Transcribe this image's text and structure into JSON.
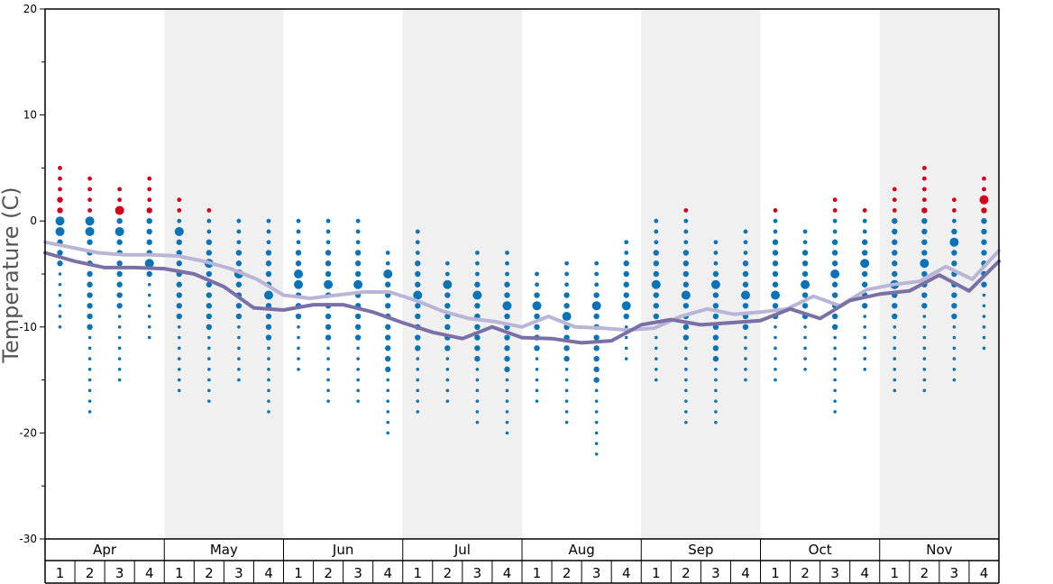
{
  "chart_data": {
    "type": "scatter",
    "title": "",
    "ylabel": "Temperature (C)",
    "ylim": [
      -30,
      20
    ],
    "yticks": [
      "20",
      "10",
      "0",
      "-10",
      "-20",
      "-30"
    ],
    "months": [
      "Apr",
      "May",
      "Jun",
      "Jul",
      "Aug",
      "Sep",
      "Oct",
      "Nov"
    ],
    "weeks": [
      "1",
      "2",
      "3",
      "4"
    ],
    "grid": "alternating shaded month bands",
    "colors": {
      "warm_dot": "#d0021b",
      "cold_dot": "#0a73b8",
      "upper_line": "#b9b5d6",
      "lower_line": "#7a70a6",
      "band": "#f0f0f0"
    },
    "upper_line": [
      -2.0,
      -2.5,
      -3.0,
      -3.2,
      -3.2,
      -3.3,
      -3.8,
      -4.5,
      -5.5,
      -7.0,
      -7.3,
      -7.0,
      -6.7,
      -6.7,
      -7.5,
      -8.5,
      -9.2,
      -9.5,
      -10.0,
      -9.0,
      -10.0,
      -10.1,
      -10.3,
      -10.1,
      -9.0,
      -8.3,
      -8.8,
      -8.6,
      -8.3,
      -7.1,
      -8.0,
      -6.5,
      -6.0,
      -5.7,
      -4.3,
      -5.5,
      -2.8
    ],
    "lower_line": [
      -3.0,
      -3.8,
      -4.4,
      -4.4,
      -4.5,
      -5.0,
      -6.2,
      -8.2,
      -8.4,
      -7.9,
      -7.9,
      -8.6,
      -9.6,
      -10.5,
      -11.1,
      -10.0,
      -11.0,
      -11.1,
      -11.5,
      -11.3,
      -9.8,
      -9.3,
      -9.8,
      -9.6,
      -9.4,
      -8.3,
      -9.2,
      -7.5,
      -6.9,
      -6.6,
      -5.1,
      -6.6,
      -3.8
    ],
    "dot_columns": [
      {
        "min": -10,
        "max": 5,
        "big": [
          0,
          -1
        ],
        "warm_from": 1
      },
      {
        "min": -18,
        "max": 4,
        "big": [
          0,
          -1
        ],
        "warm_from": 1
      },
      {
        "min": -15,
        "max": 3,
        "big": [
          1,
          -1
        ],
        "warm_from": 1
      },
      {
        "min": -11,
        "max": 4,
        "big": [
          -4
        ],
        "warm_from": 1
      },
      {
        "min": -16,
        "max": 2,
        "big": [
          -1
        ],
        "warm_from": 1
      },
      {
        "min": -17,
        "max": 1,
        "big": [
          -4
        ],
        "warm_from": 1
      },
      {
        "min": -15,
        "max": 0,
        "big": [
          -5
        ],
        "warm_from": 99
      },
      {
        "min": -18,
        "max": 0,
        "big": [
          -7
        ],
        "warm_from": 99
      },
      {
        "min": -14,
        "max": 0,
        "big": [
          -5,
          -6
        ],
        "warm_from": 99
      },
      {
        "min": -17,
        "max": 0,
        "big": [
          -6
        ],
        "warm_from": 99
      },
      {
        "min": -17,
        "max": 0,
        "big": [
          -6
        ],
        "warm_from": 99
      },
      {
        "min": -20,
        "max": -3,
        "big": [
          -5
        ],
        "warm_from": 99
      },
      {
        "min": -18,
        "max": -1,
        "big": [
          -7
        ],
        "warm_from": 99
      },
      {
        "min": -17,
        "max": -4,
        "big": [
          -6
        ],
        "warm_from": 99
      },
      {
        "min": -19,
        "max": -3,
        "big": [
          -7
        ],
        "warm_from": 99
      },
      {
        "min": -20,
        "max": -3,
        "big": [
          -8
        ],
        "warm_from": 99
      },
      {
        "min": -17,
        "max": -5,
        "big": [
          -8
        ],
        "warm_from": 99
      },
      {
        "min": -19,
        "max": -4,
        "big": [
          -9
        ],
        "warm_from": 99
      },
      {
        "min": -22,
        "max": -4,
        "big": [
          -8
        ],
        "warm_from": 99
      },
      {
        "min": -13,
        "max": -2,
        "big": [
          -8
        ],
        "warm_from": 99
      },
      {
        "min": -15,
        "max": 0,
        "big": [
          -6
        ],
        "warm_from": 99
      },
      {
        "min": -19,
        "max": 1,
        "big": [
          -7
        ],
        "warm_from": 1
      },
      {
        "min": -19,
        "max": -2,
        "big": [
          -6
        ],
        "warm_from": 99
      },
      {
        "min": -15,
        "max": -1,
        "big": [
          -7
        ],
        "warm_from": 99
      },
      {
        "min": -15,
        "max": 1,
        "big": [
          -7
        ],
        "warm_from": 1
      },
      {
        "min": -14,
        "max": -1,
        "big": [
          -6
        ],
        "warm_from": 99
      },
      {
        "min": -18,
        "max": 2,
        "big": [
          -5
        ],
        "warm_from": 1
      },
      {
        "min": -14,
        "max": 1,
        "big": [
          -4
        ],
        "warm_from": 1
      },
      {
        "min": -16,
        "max": 3,
        "big": [
          -6
        ],
        "warm_from": 1
      },
      {
        "min": -16,
        "max": 5,
        "big": [
          -4
        ],
        "warm_from": 1
      },
      {
        "min": -15,
        "max": 2,
        "big": [
          -2
        ],
        "warm_from": 1
      },
      {
        "min": -12,
        "max": 4,
        "big": [
          2
        ],
        "warm_from": 1
      }
    ]
  }
}
